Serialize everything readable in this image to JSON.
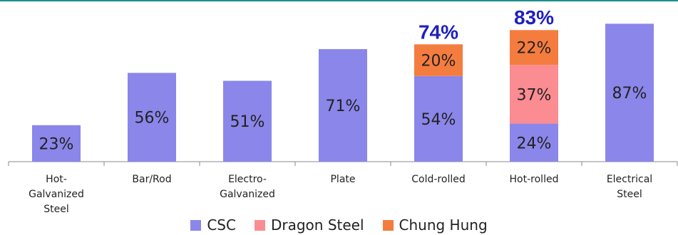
{
  "accent_color": "#1a8f8f",
  "chart_data": {
    "type": "bar",
    "stacked": true,
    "categories": [
      [
        "Hot-",
        "Galvanized",
        "Steel"
      ],
      [
        "Bar/Rod"
      ],
      [
        "Electro-",
        "Galvanized"
      ],
      [
        "Plate"
      ],
      [
        "Cold-rolled"
      ],
      [
        "Hot-rolled"
      ],
      [
        "Electrical",
        "Steel"
      ]
    ],
    "series": [
      {
        "name": "CSC",
        "color": "#8b86ea",
        "values": [
          23,
          56,
          51,
          71,
          54,
          24,
          87
        ],
        "labels": [
          "23%",
          "56%",
          "51%",
          "71%",
          "54%",
          "24%",
          "87%"
        ]
      },
      {
        "name": "Dragon Steel",
        "color": "#fb8c92",
        "values": [
          0,
          0,
          0,
          0,
          0,
          37,
          0
        ],
        "labels": [
          "",
          "",
          "",
          "",
          "",
          "37%",
          ""
        ]
      },
      {
        "name": "Chung Hung",
        "color": "#f57c3f",
        "values": [
          0,
          0,
          0,
          0,
          20,
          22,
          0
        ],
        "labels": [
          "",
          "",
          "",
          "",
          "20%",
          "22%",
          ""
        ]
      }
    ],
    "totals": [
      "",
      "",
      "",
      "",
      "74%",
      "83%",
      ""
    ],
    "total_color": "#1f1fbf",
    "ylim": [
      0,
      100
    ],
    "grid": false,
    "legend_position": "bottom"
  }
}
